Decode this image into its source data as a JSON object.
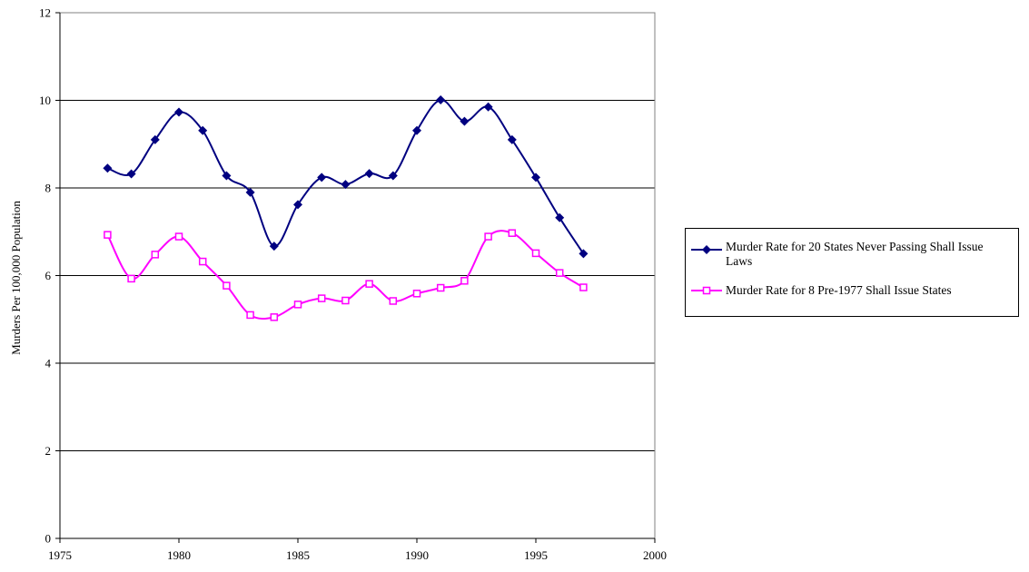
{
  "chart_data": {
    "type": "line",
    "title": "",
    "xlabel": "",
    "ylabel": "Murders Per 100,000 Population",
    "xlim": [
      1975,
      2000
    ],
    "ylim": [
      0,
      12
    ],
    "x_ticks": [
      1975,
      1980,
      1985,
      1990,
      1995,
      2000
    ],
    "y_ticks": [
      0,
      2,
      4,
      6,
      8,
      10,
      12
    ],
    "grid": "horizontal",
    "legend_position": "right",
    "x": [
      1977,
      1978,
      1979,
      1980,
      1981,
      1982,
      1983,
      1984,
      1985,
      1986,
      1987,
      1988,
      1989,
      1990,
      1991,
      1992,
      1993,
      1994,
      1995,
      1996,
      1997
    ],
    "series": [
      {
        "name": "Murder Rate for 20 States Never Passing Shall Issue Laws",
        "color": "#000080",
        "marker": "diamond",
        "values": [
          8.45,
          8.32,
          9.1,
          9.73,
          9.31,
          8.28,
          7.9,
          6.67,
          7.62,
          8.24,
          8.08,
          8.33,
          8.28,
          9.31,
          10.01,
          9.52,
          9.85,
          9.1,
          8.24,
          7.32,
          6.5
        ]
      },
      {
        "name": "Murder Rate for 8 Pre-1977 Shall Issue States",
        "color": "#ff00ff",
        "marker": "square",
        "values": [
          6.93,
          5.93,
          6.48,
          6.89,
          6.32,
          5.77,
          5.1,
          5.05,
          5.34,
          5.48,
          5.43,
          5.81,
          5.42,
          5.59,
          5.72,
          5.88,
          6.89,
          6.97,
          6.51,
          6.06,
          5.73
        ]
      }
    ]
  }
}
